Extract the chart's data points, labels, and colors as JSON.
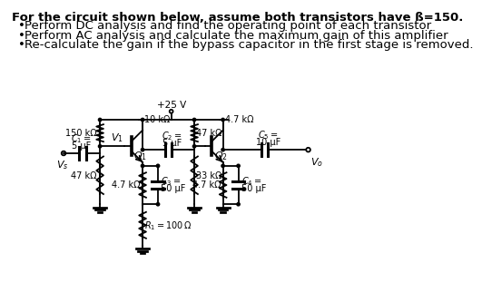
{
  "title_line": "For the circuit shown below, assume both transistors have ß=150.",
  "bullets": [
    "Perform DC analysis and find the operating point of each transistor",
    "Perform AC analysis and calculate the maximum gain of this amplifier",
    "Re-calculate the gain if the bypass capacitor in the first stage is removed."
  ],
  "supply_label": "+25 V",
  "bg_color": "#ffffff",
  "line_color": "#000000",
  "text_color": "#000000",
  "fontsize_title": 9.5,
  "fontsize_bullets": 9.5,
  "fontsize_labels": 7.0
}
